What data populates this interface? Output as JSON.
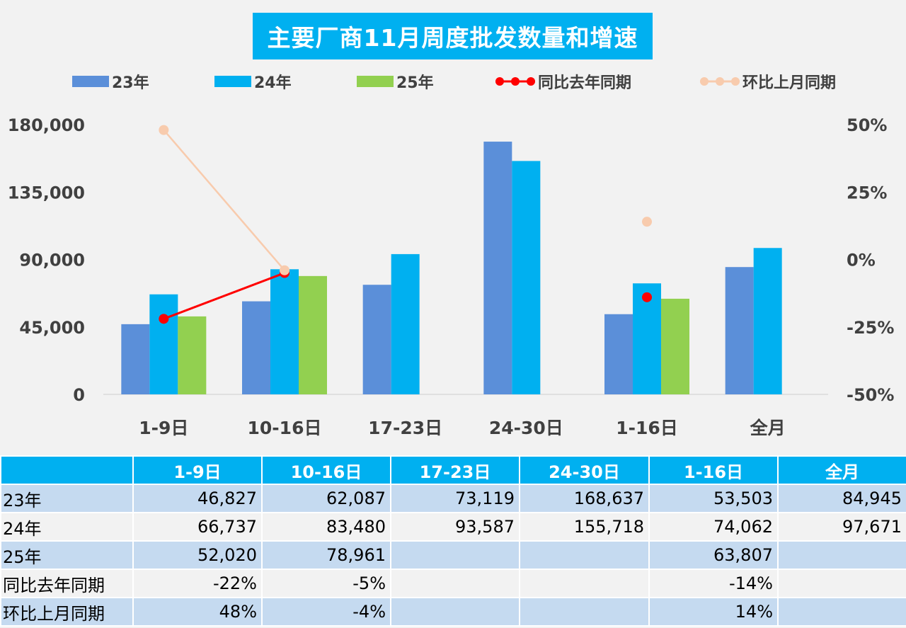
{
  "title": "主要厂商11月周度批发数量和增速",
  "legend": {
    "s23": "23年",
    "s24": "24年",
    "s25": "25年",
    "yoy": "同比去年同期",
    "mom": "环比上月同期"
  },
  "colors": {
    "s23": "#5b8fd9",
    "s24": "#00b0f0",
    "s25": "#92d050",
    "yoy": "#ff0000",
    "mom": "#f8cbad",
    "title_bg": "#00b0f0"
  },
  "chart_data": {
    "type": "bar",
    "title": "主要厂商11月周度批发数量和增速",
    "categories": [
      "1-9日",
      "10-16日",
      "17-23日",
      "24-30日",
      "1-16日",
      "全月"
    ],
    "series": [
      {
        "name": "23年",
        "values": [
          46827,
          62087,
          73119,
          168637,
          53503,
          84945
        ]
      },
      {
        "name": "24年",
        "values": [
          66737,
          83480,
          93587,
          155718,
          74062,
          97671
        ]
      },
      {
        "name": "25年",
        "values": [
          52020,
          78961,
          null,
          null,
          63807,
          null
        ]
      }
    ],
    "line_series": [
      {
        "name": "同比去年同期",
        "values": [
          -0.22,
          -0.05,
          null,
          null,
          -0.14,
          null
        ],
        "connect": [
          [
            0,
            1
          ]
        ]
      },
      {
        "name": "环比上月同期",
        "values": [
          0.48,
          -0.04,
          null,
          null,
          0.14,
          null
        ],
        "connect": [
          [
            0,
            1
          ]
        ]
      }
    ],
    "ylim": [
      0,
      180000
    ],
    "yticks": [
      "180,000",
      "135,000",
      "90,000",
      "45,000",
      "0"
    ],
    "y2lim": [
      -0.5,
      0.5
    ],
    "y2ticks": [
      "50%",
      "25%",
      "0%",
      "-25%",
      "-50%"
    ],
    "legend_position": "top"
  },
  "table": {
    "headers": [
      "",
      "1-9日",
      "10-16日",
      "17-23日",
      "24-30日",
      "1-16日",
      "全月"
    ],
    "rows": [
      [
        "23年",
        "46,827",
        "62,087",
        "73,119",
        "168,637",
        "53,503",
        "84,945"
      ],
      [
        "24年",
        "66,737",
        "83,480",
        "93,587",
        "155,718",
        "74,062",
        "97,671"
      ],
      [
        "25年",
        "52,020",
        "78,961",
        "",
        "",
        "63,807",
        ""
      ],
      [
        "同比去年同期",
        "-22%",
        "-5%",
        "",
        "",
        "-14%",
        ""
      ],
      [
        "环比上月同期",
        "48%",
        "-4%",
        "",
        "",
        "14%",
        ""
      ]
    ]
  }
}
